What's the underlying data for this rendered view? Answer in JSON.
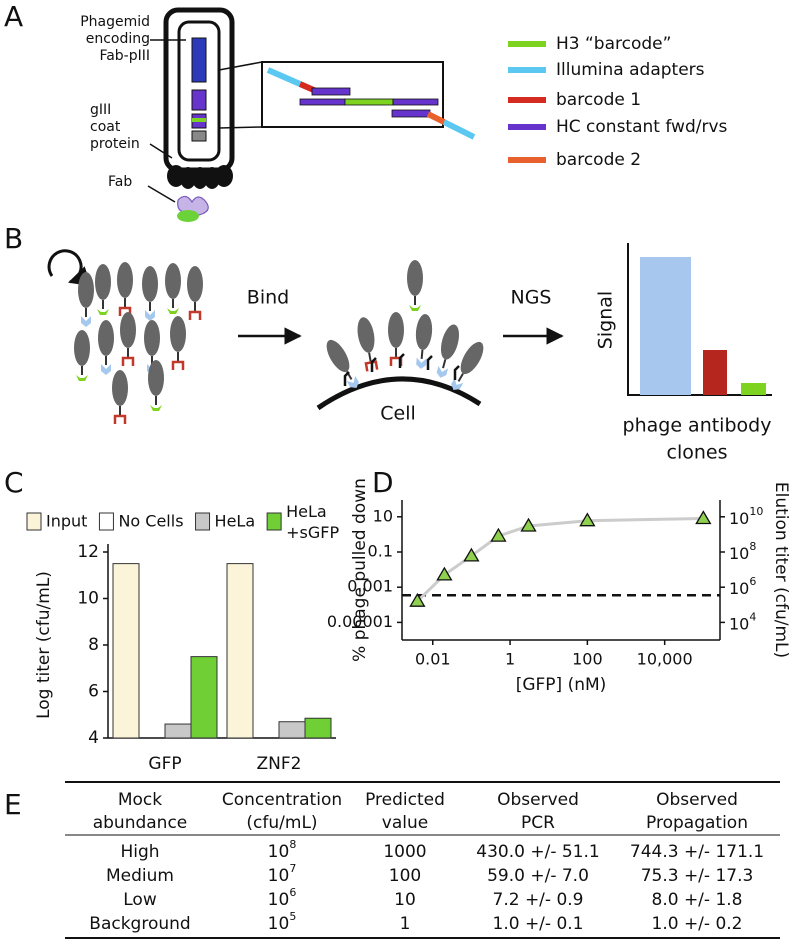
{
  "panel_labels": [
    "A",
    "B",
    "C",
    "D",
    "E"
  ],
  "panel_a": {
    "phagemid_label": [
      "Phagemid",
      "encoding",
      "Fab-pIII"
    ],
    "coat_label": [
      "gIII",
      "coat",
      "protein"
    ],
    "fab_label": "Fab",
    "legend": [
      {
        "label": "H3 “barcode”",
        "color": "#7ed321"
      },
      {
        "label": "Illumina adapters",
        "color": "#5bc8f2"
      },
      {
        "label": "barcode 1",
        "color": "#d42a20"
      },
      {
        "label": "HC constant fwd/rvs",
        "color": "#6633cc"
      },
      {
        "label": "barcode 2",
        "color": "#e8602c"
      }
    ]
  },
  "panel_b": {
    "bind": "Bind",
    "ngs": "NGS",
    "cell": "Cell",
    "signal": "Signal",
    "x_label": [
      "phage antibody",
      "clones"
    ]
  },
  "chart_data": [
    {
      "type": "bar",
      "y_label": "Log titer (cfu/mL)",
      "categories": [
        "GFP",
        "ZNF2"
      ],
      "series": [
        {
          "name": "Input",
          "color": "#fbf4d9",
          "values": [
            11.5,
            11.5
          ]
        },
        {
          "name": "No Cells",
          "color": "#ffffff",
          "values": [
            4.0,
            4.0
          ]
        },
        {
          "name": "HeLa",
          "color": "#c8c8c8",
          "values": [
            4.6,
            4.7
          ]
        },
        {
          "name": "HeLa\n+sGFP",
          "color": "#6fcf34",
          "values": [
            7.5,
            4.85
          ]
        }
      ],
      "ylim": [
        4,
        12
      ],
      "yticks": [
        4,
        6,
        8,
        10,
        12
      ],
      "legend": "top"
    },
    {
      "type": "scatter",
      "x_label": "[GFP] (nM)",
      "y_label": "% phage pulled down",
      "y2_label": "Elution titer (cfu/mL)",
      "x": [
        0.004,
        0.02,
        0.1,
        0.5,
        3,
        100,
        100000
      ],
      "values": [
        0.00016,
        0.005,
        0.06,
        0.8,
        3,
        6,
        8
      ],
      "color": "#8fd14f",
      "line_color": "#cccccc",
      "baseline": 0.00035,
      "xlog": true,
      "ylog": true,
      "xlim": [
        0.0016,
        270000
      ],
      "ylim": [
        1e-06,
        90
      ],
      "y2lim": [
        1000,
        90000000000
      ],
      "xticks": [
        0.01,
        1,
        100,
        {
          "value": 10000,
          "label": "10,000"
        }
      ],
      "yticks": [
        {
          "value": 1e-05,
          "label": "0.00001"
        },
        0.001,
        0.1,
        10
      ],
      "y2ticks": [
        {
          "value": 10000,
          "label": "10",
          "exponent": "4"
        },
        {
          "value": 1000000,
          "label": "10",
          "exponent": "6"
        },
        {
          "value": 100000000,
          "label": "10",
          "exponent": "8"
        },
        {
          "value": 10000000000,
          "label": "10",
          "exponent": "10"
        }
      ]
    }
  ],
  "table": {
    "header": [
      [
        "Mock",
        "abundance"
      ],
      [
        "Concentration",
        "(cfu/mL)"
      ],
      [
        "Predicted",
        "value"
      ],
      [
        "Observed",
        "PCR"
      ],
      [
        "Observed",
        "Propagation"
      ]
    ],
    "rows": [
      [
        "High",
        {
          "base": "10",
          "exp": "8"
        },
        "1000",
        "430.0 +/- 51.1",
        "744.3 +/- 171.1"
      ],
      [
        "Medium",
        {
          "base": "10",
          "exp": "7"
        },
        "100",
        "59.0 +/- 7.0",
        "75.3 +/- 17.3"
      ],
      [
        "Low",
        {
          "base": "10",
          "exp": "6"
        },
        "10",
        "7.2 +/- 0.9",
        "8.0 +/- 1.8"
      ],
      [
        "Background",
        {
          "base": "10",
          "exp": "5"
        },
        "1",
        "1.0 +/- 0.1",
        "1.0 +/- 0.2"
      ]
    ]
  }
}
